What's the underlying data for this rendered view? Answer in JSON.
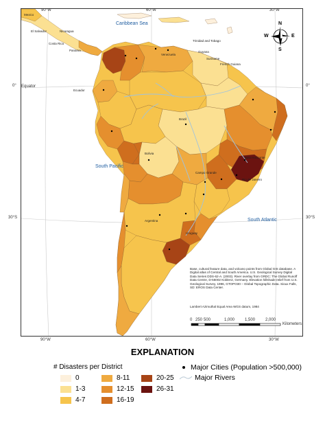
{
  "map": {
    "top_ticks": [
      "90°W",
      "60°W",
      "30°W"
    ],
    "bottom_ticks": [
      "90°W",
      "60°W",
      "30°W"
    ],
    "left_ticks": [
      "0°",
      "30°S"
    ],
    "right_ticks": [
      "0°",
      "30°S"
    ],
    "equator_label": "Equator",
    "seas": {
      "caribbean": "Caribbean Sea",
      "south_pacific": "South Pacific",
      "south_atlantic": "South Atlantic"
    },
    "places": {
      "mexico": "Mexico",
      "el_salvador": "El Salvador",
      "nicaragua": "Nicaragua",
      "costa_rica": "Costa Rica",
      "panama": "Panama",
      "trinidad": "Trinidad and Tobago",
      "venezuela": "Venezuela",
      "guyana": "Guyana",
      "suriname": "Suriname",
      "french_guiana": "French Guiana",
      "ecuador": "Ecuador",
      "brazil": "Brazil",
      "bolivia": "Bolivia",
      "campo_grande": "Campo Grande",
      "rio": "Rio de Janeiro",
      "belo_horizonte": "Belo Horizonte",
      "argentina": "Argentina",
      "uruguay": "Uruguay"
    },
    "compass": {
      "n": "N",
      "s": "S",
      "e": "E",
      "w": "W"
    },
    "scale_labels": [
      "0",
      "250",
      "500",
      "1,000",
      "1,500",
      "2,000"
    ],
    "scale_unit": "Kilometers",
    "credits": "Base, cultural feature data, and volcano points from Global GIS database. A Digital atlas of Central and South America. U.S. Geological Survey Digital Data Series DDS-62-A. (2003). River overlay from GRDC: The Global Runoff Data Centre, D-56002 Koblenz, Germany. Elevation hillshade relief from U.S. Geological Survey, 1996, GTOPO30 – Global Topographic Data. Sioux Falls, SD: EROS Data Center.",
    "projection": "Lambert Azimuthal Equal Area WGS datum, 1984",
    "ocean_color": "#ffffff",
    "land_outside_color": "#f4dba0",
    "border_color": "#7a5530",
    "river_color": "#9ec3df"
  },
  "legend": {
    "title": "EXPLANATION",
    "subtitle": "# Disasters per District",
    "classes": [
      {
        "label": "0",
        "color": "#fdf0dc"
      },
      {
        "label": "1-3",
        "color": "#fbe092"
      },
      {
        "label": "4-7",
        "color": "#f6c44c"
      },
      {
        "label": "8-11",
        "color": "#efaa40"
      },
      {
        "label": "12-15",
        "color": "#e58f2e"
      },
      {
        "label": "16-19",
        "color": "#cf6e1e"
      },
      {
        "label": "20-25",
        "color": "#a74416"
      },
      {
        "label": "26-31",
        "color": "#6b1310"
      }
    ],
    "cities_label": "Major Cities (Population >500,000)",
    "rivers_label": "Major Rivers"
  }
}
